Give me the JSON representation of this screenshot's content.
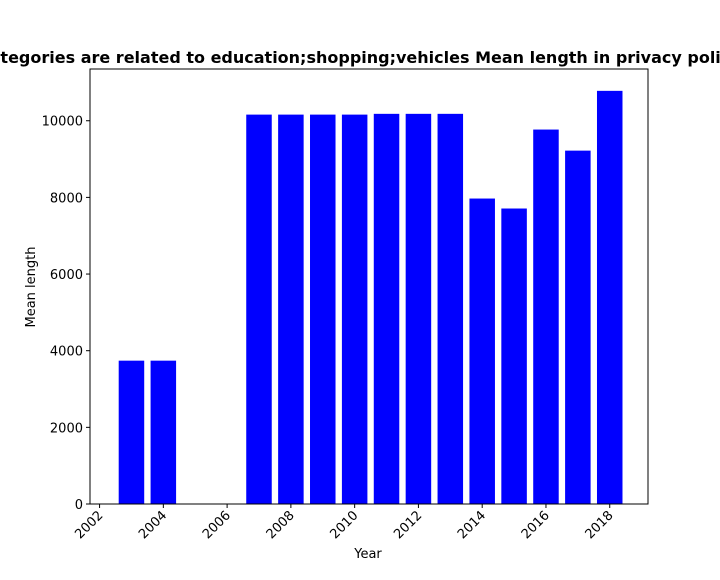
{
  "chart_data": {
    "type": "bar",
    "title": "Categories are related to education;shopping;vehicles Mean length in privacy policies",
    "xlabel": "Year",
    "ylabel": "Mean length",
    "x": [
      2003,
      2004,
      2007,
      2008,
      2009,
      2010,
      2011,
      2012,
      2013,
      2014,
      2015,
      2016,
      2017,
      2018
    ],
    "values": [
      3740,
      3740,
      10160,
      10160,
      10160,
      10160,
      10180,
      10180,
      10180,
      7970,
      7710,
      9770,
      9220,
      10780
    ],
    "xlim": [
      2001.7,
      2019.2
    ],
    "ylim": [
      0,
      11350
    ],
    "xticks": [
      2002,
      2004,
      2006,
      2008,
      2010,
      2012,
      2014,
      2016,
      2018
    ],
    "yticks": [
      0,
      2000,
      4000,
      6000,
      8000,
      10000
    ],
    "bar_color": "#0000ff",
    "grid": false,
    "legend": "none"
  }
}
